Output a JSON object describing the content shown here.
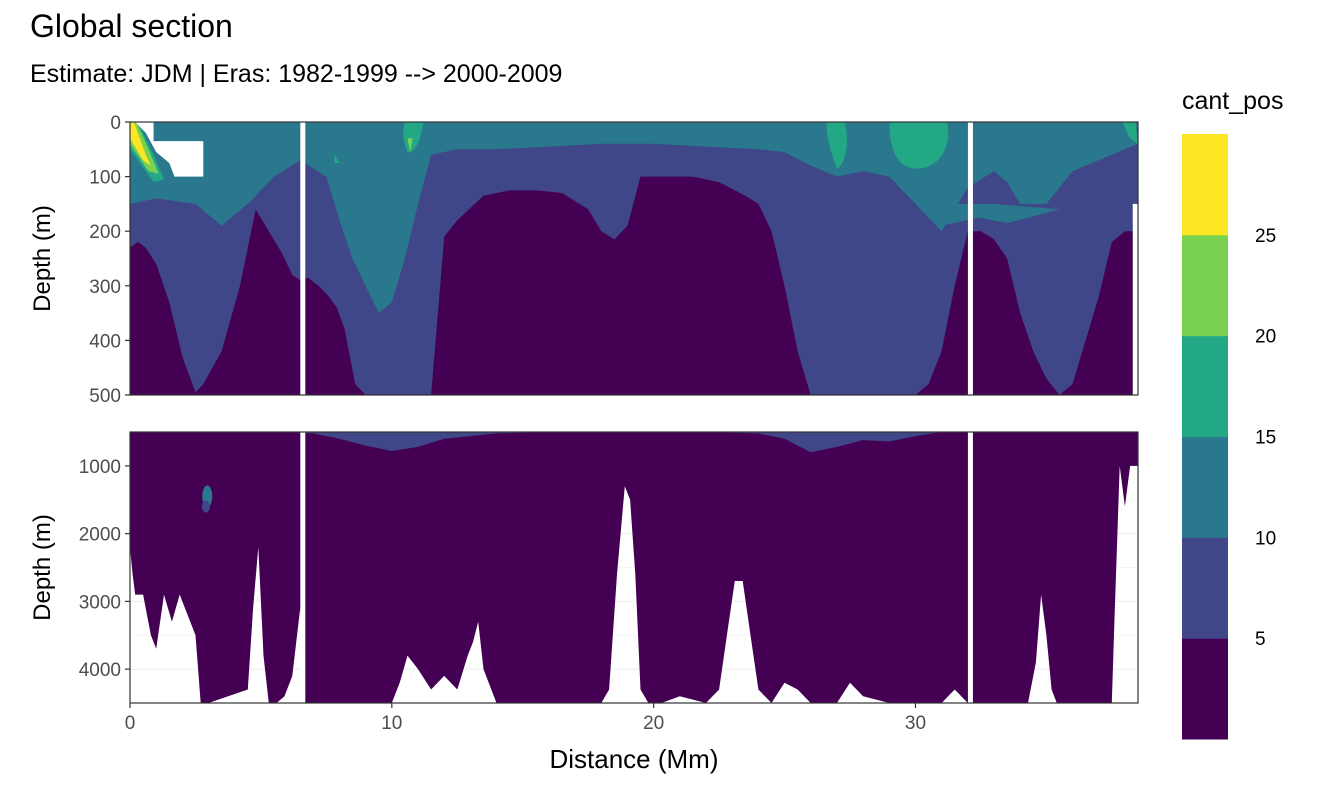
{
  "chart_data": {
    "type": "heatmap",
    "title": "Global section",
    "subtitle": "Estimate: JDM  | Eras: 1982-1999 --> 2000-2009",
    "xlabel": "Distance (Mm)",
    "ylabel": "Depth (m)",
    "xlim": [
      0,
      38.5
    ],
    "x_ticks": [
      0,
      10,
      20,
      30
    ],
    "panels": [
      {
        "name": "upper",
        "ylim": [
          0,
          500
        ],
        "y_ticks": [
          0,
          100,
          200,
          300,
          400,
          500
        ]
      },
      {
        "name": "lower",
        "ylim": [
          500,
          4500
        ],
        "y_ticks": [
          1000,
          2000,
          3000,
          4000
        ]
      }
    ],
    "legend": {
      "title": "cant_pos",
      "position": "right",
      "breaks": [
        5,
        10,
        15,
        20,
        25
      ],
      "bins": [
        {
          "range": "<5",
          "color": "#440154"
        },
        {
          "range": "5-10",
          "color": "#3f4788"
        },
        {
          "range": "10-15",
          "color": "#2a788e"
        },
        {
          "range": "15-20",
          "color": "#22a884"
        },
        {
          "range": "20-25",
          "color": "#7ad151"
        },
        {
          "range": ">25",
          "color": "#fde725"
        }
      ]
    },
    "section_gaps_distance": [
      6.6,
      32.1
    ],
    "upper_contours": {
      "top_of_lt5_depth": {
        "x": [
          0,
          0.3,
          0.6,
          1,
          1.5,
          2,
          2.5,
          2.8,
          3.5,
          4.2,
          4.8,
          5.3,
          5.8,
          6.2,
          6.5,
          6.8,
          7.2,
          7.6,
          7.9,
          8.2,
          8.6,
          9,
          9.6,
          10.3,
          11,
          11.5,
          12,
          12.5,
          13.5,
          14.5,
          15.5,
          16.5,
          17.5,
          18,
          18.5,
          19,
          19.5,
          20.5,
          21.5,
          22.5,
          23.5,
          24,
          24.5,
          25,
          25.5,
          26,
          26.5,
          27,
          28,
          29,
          30,
          30.5,
          31,
          31.5,
          32,
          32.5,
          33,
          33.5,
          34,
          34.5,
          35,
          35.5,
          36,
          36.5,
          37,
          37.5,
          38,
          38.5
        ],
        "y": [
          230,
          220,
          230,
          260,
          330,
          430,
          495,
          480,
          420,
          300,
          160,
          200,
          240,
          280,
          290,
          285,
          300,
          320,
          340,
          380,
          480,
          500,
          500,
          500,
          500,
          500,
          210,
          180,
          135,
          125,
          125,
          130,
          160,
          200,
          215,
          190,
          100,
          100,
          100,
          110,
          135,
          150,
          200,
          300,
          420,
          500,
          500,
          500,
          500,
          500,
          500,
          480,
          420,
          300,
          200,
          200,
          215,
          250,
          350,
          420,
          470,
          500,
          480,
          400,
          320,
          220,
          200,
          200
        ]
      },
      "top_of_5to10_depth": {
        "x": [
          0,
          1,
          2.5,
          3.5,
          4.5,
          5.5,
          6.5,
          7.5,
          8,
          8.5,
          9,
          9.5,
          10,
          10.5,
          11,
          11.5,
          12.5,
          14,
          16,
          18,
          20,
          22,
          24,
          25,
          26,
          26.5,
          27,
          28,
          29,
          30,
          31,
          32,
          33,
          33.5,
          34,
          34.5,
          35,
          35.5,
          36,
          37,
          38,
          38.5
        ],
        "y": [
          150,
          140,
          150,
          190,
          150,
          100,
          70,
          100,
          180,
          250,
          300,
          350,
          330,
          250,
          150,
          60,
          50,
          50,
          45,
          40,
          40,
          45,
          50,
          55,
          80,
          90,
          100,
          90,
          100,
          150,
          200,
          120,
          90,
          110,
          150,
          150,
          150,
          120,
          90,
          70,
          50,
          40
        ]
      }
    },
    "lower_seafloor_depth": {
      "x": [
        0,
        0.1,
        0.2,
        0.3,
        0.5,
        0.8,
        1,
        1.3,
        1.6,
        1.9,
        2.2,
        2.5,
        2.7,
        3,
        4.5,
        4.7,
        4.9,
        5.1,
        5.3,
        5.6,
        5.9,
        6.2,
        6.5,
        6.6,
        7,
        10,
        10.3,
        10.6,
        11,
        11.5,
        12,
        12.5,
        12.9,
        13.1,
        13.3,
        13.5,
        13.7,
        14,
        18,
        18.3,
        18.6,
        18.9,
        19.1,
        19.3,
        19.5,
        19.8,
        20.3,
        21,
        22,
        22.5,
        22.8,
        23.1,
        23.4,
        23.7,
        24,
        24.5,
        25,
        25.5,
        26,
        27,
        27.5,
        28,
        29,
        30,
        31,
        31.5,
        32,
        32.3,
        34.3,
        34.6,
        34.8,
        35,
        35.2,
        35.4,
        36,
        37,
        37.5,
        37.6,
        37.8,
        38,
        38.2,
        38.5
      ],
      "y": [
        2200,
        2600,
        2900,
        2900,
        2900,
        3500,
        3700,
        2900,
        3300,
        2900,
        3200,
        3500,
        4500,
        4500,
        4300,
        3100,
        2200,
        3800,
        4500,
        4500,
        4400,
        4100,
        3100,
        4500,
        4500,
        4500,
        4200,
        3800,
        4000,
        4300,
        4100,
        4300,
        3800,
        3600,
        3300,
        4000,
        4200,
        4500,
        4500,
        4300,
        2600,
        1300,
        1500,
        2600,
        4300,
        4500,
        4500,
        4400,
        4500,
        4300,
        3500,
        2700,
        2700,
        3500,
        4300,
        4500,
        4200,
        4300,
        4500,
        4500,
        4200,
        4400,
        4500,
        4500,
        4500,
        4300,
        4500,
        4500,
        4500,
        3900,
        2900,
        3500,
        4300,
        4500,
        4500,
        4500,
        4500,
        3300,
        1000,
        1600,
        1000,
        1000
      ]
    },
    "lower_contours": {
      "base_of_5to10_depth": {
        "x": [
          0,
          2,
          4,
          6,
          7,
          8,
          9,
          10,
          11,
          12,
          14,
          16,
          18,
          20,
          22,
          24,
          25,
          26,
          27,
          28,
          29,
          30,
          31,
          32,
          33,
          34,
          36,
          38.5
        ],
        "y": [
          500,
          500,
          500,
          500,
          520,
          600,
          700,
          780,
          720,
          600,
          520,
          500,
          500,
          500,
          500,
          520,
          600,
          800,
          720,
          620,
          640,
          560,
          500,
          500,
          500,
          500,
          500,
          500
        ]
      }
    }
  }
}
